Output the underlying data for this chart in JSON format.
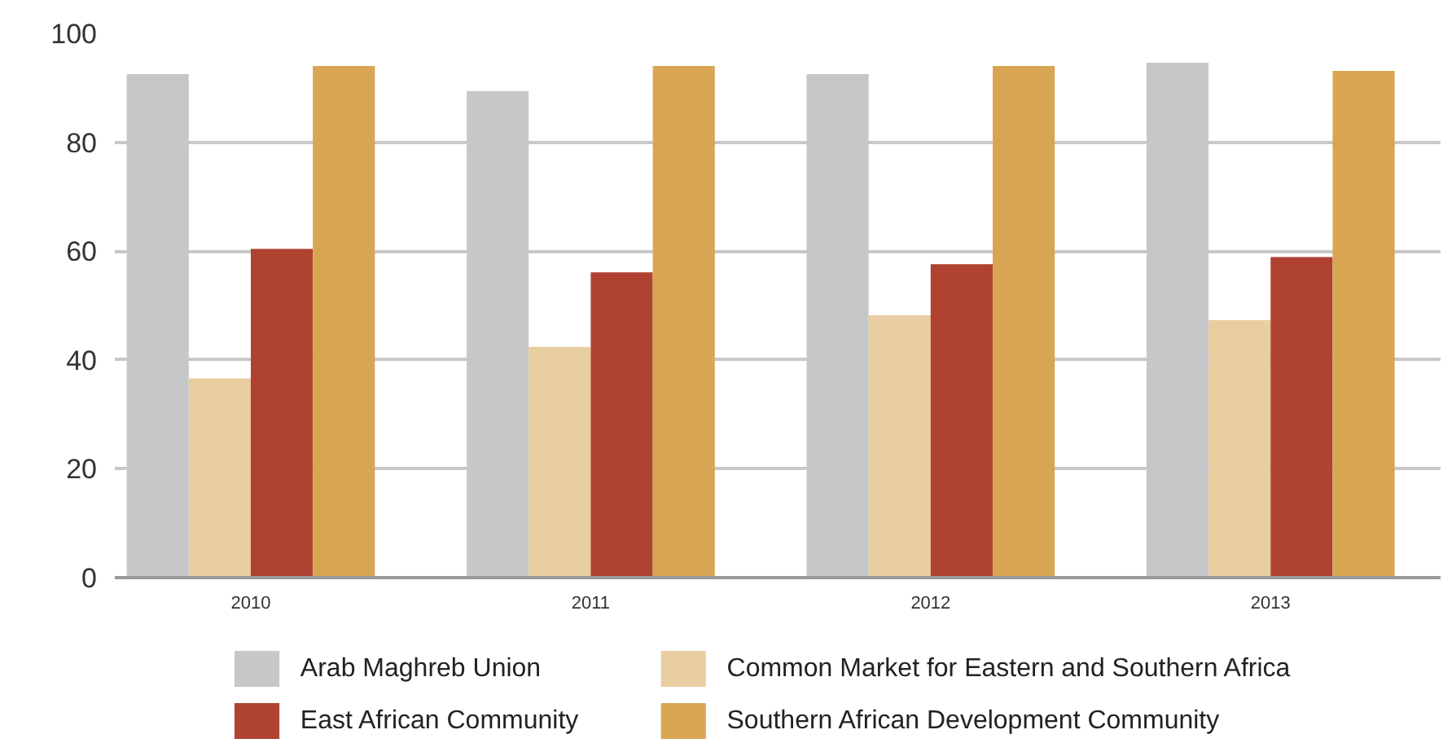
{
  "chart_data": {
    "type": "bar",
    "categories": [
      "2010",
      "2011",
      "2012",
      "2013"
    ],
    "series": [
      {
        "name": "Arab Maghreb Union",
        "color": "#c6c7c9",
        "values": [
          92.5,
          89.4,
          92.5,
          94.6
        ]
      },
      {
        "name": "Common Market for Eastern and Southern Africa",
        "color": "#e8cea0",
        "values": [
          36.6,
          42.4,
          48.2,
          47.3
        ]
      },
      {
        "name": "East African Community",
        "color": "#b04232",
        "values": [
          60.4,
          56.1,
          57.6,
          58.9
        ]
      },
      {
        "name": "Southern African Development Community",
        "color": "#d8a652",
        "values": [
          94.0,
          94.0,
          94.0,
          93.1
        ]
      }
    ],
    "ylim": [
      0,
      100
    ],
    "yticks": [
      0,
      20,
      40,
      60,
      80,
      100
    ],
    "grid": "y",
    "legend": "bottom"
  }
}
